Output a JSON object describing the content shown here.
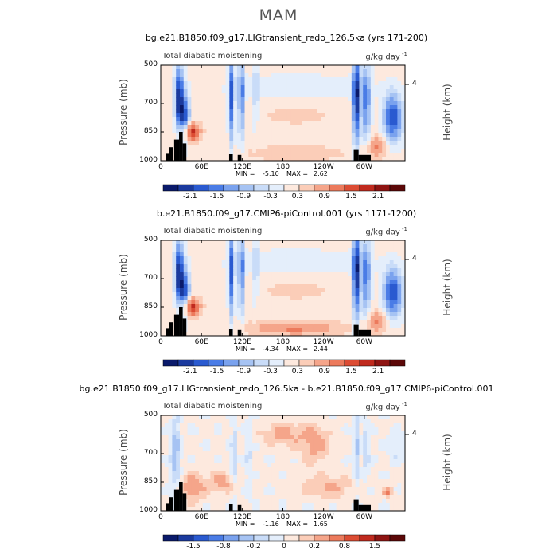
{
  "figure": {
    "title": "MAM"
  },
  "chart_data": [
    {
      "type": "heatmap",
      "title": "bg.e21.B1850.f09_g17.LIGtransient_redo_126.5ka (yrs 171-200)",
      "variable": "Total diabatic moistening",
      "units": "g/kg day",
      "units_exp": "-1",
      "xlabel": "",
      "ylabel": "Pressure (mb)",
      "ylabel_right": "Height (km)",
      "x_ticks": [
        "0",
        "60E",
        "120E",
        "180",
        "120W",
        "60W"
      ],
      "x_tick_values": [
        0,
        60,
        120,
        180,
        240,
        300
      ],
      "xlim": [
        0,
        360
      ],
      "y_ticks": [
        "500",
        "700",
        "850",
        "1000"
      ],
      "y_tick_values": [
        500,
        700,
        850,
        1000
      ],
      "ylim": [
        1000,
        500
      ],
      "right_ticks": [
        "4"
      ],
      "stats": {
        "min_label": "MIN =",
        "min": "-5.10",
        "max_label": "MAX =",
        "max": "2.62"
      },
      "colorbar": {
        "labels": [
          "-2.1",
          "-1.5",
          "-0.9",
          "-0.3",
          "0.3",
          "0.9",
          "1.5",
          "2.1"
        ],
        "colors": [
          "#0a1a6b",
          "#1b3a9e",
          "#2a5ad0",
          "#4a7ce6",
          "#7aa2ee",
          "#a6c3f3",
          "#c9dcf8",
          "#e4eefb",
          "#fde9de",
          "#fbcdb8",
          "#f5a58a",
          "#ec7a5c",
          "#dc4c33",
          "#c02a1e",
          "#8e1412",
          "#5c0808"
        ]
      }
    },
    {
      "type": "heatmap",
      "title": "b.e21.B1850.f09_g17.CMIP6-piControl.001 (yrs 1171-1200)",
      "variable": "Total diabatic moistening",
      "units": "g/kg day",
      "units_exp": "-1",
      "xlabel": "",
      "ylabel": "Pressure (mb)",
      "ylabel_right": "Height (km)",
      "x_ticks": [
        "0",
        "60E",
        "120E",
        "180",
        "120W",
        "60W"
      ],
      "x_tick_values": [
        0,
        60,
        120,
        180,
        240,
        300
      ],
      "xlim": [
        0,
        360
      ],
      "y_ticks": [
        "500",
        "700",
        "850",
        "1000"
      ],
      "y_tick_values": [
        500,
        700,
        850,
        1000
      ],
      "ylim": [
        1000,
        500
      ],
      "right_ticks": [
        "4"
      ],
      "stats": {
        "min_label": "MIN =",
        "min": "-4.34",
        "max_label": "MAX =",
        "max": "2.44"
      },
      "colorbar": {
        "labels": [
          "-2.1",
          "-1.5",
          "-0.9",
          "-0.3",
          "0.3",
          "0.9",
          "1.5",
          "2.1"
        ],
        "colors": [
          "#0a1a6b",
          "#1b3a9e",
          "#2a5ad0",
          "#4a7ce6",
          "#7aa2ee",
          "#a6c3f3",
          "#c9dcf8",
          "#e4eefb",
          "#fde9de",
          "#fbcdb8",
          "#f5a58a",
          "#ec7a5c",
          "#dc4c33",
          "#c02a1e",
          "#8e1412",
          "#5c0808"
        ]
      }
    },
    {
      "type": "heatmap",
      "title": "bg.e21.B1850.f09_g17.LIGtransient_redo_126.5ka - b.e21.B1850.f09_g17.CMIP6-piControl.001",
      "variable": "Total diabatic moistening",
      "units": "g/kg day",
      "units_exp": "-1",
      "xlabel": "",
      "ylabel": "Pressure (mb)",
      "ylabel_right": "Height (km)",
      "x_ticks": [
        "0",
        "60E",
        "120E",
        "180",
        "120W",
        "60W"
      ],
      "x_tick_values": [
        0,
        60,
        120,
        180,
        240,
        300
      ],
      "xlim": [
        0,
        360
      ],
      "y_ticks": [
        "500",
        "700",
        "850",
        "1000"
      ],
      "y_tick_values": [
        500,
        700,
        850,
        1000
      ],
      "ylim": [
        1000,
        500
      ],
      "right_ticks": [
        "4"
      ],
      "stats": {
        "min_label": "MIN =",
        "min": "-1.16",
        "max_label": "MAX =",
        "max": "1.65"
      },
      "colorbar": {
        "labels": [
          "-1.5",
          "-0.8",
          "-0.2",
          "0",
          "0.2",
          "0.8",
          "1.5"
        ],
        "colors": [
          "#0a1a6b",
          "#1b3a9e",
          "#2a5ad0",
          "#4a7ce6",
          "#7aa2ee",
          "#a6c3f3",
          "#c9dcf8",
          "#e4eefb",
          "#fde9de",
          "#fbcdb8",
          "#f5a58a",
          "#ec7a5c",
          "#dc4c33",
          "#c02a1e",
          "#8e1412",
          "#5c0808"
        ]
      }
    }
  ]
}
